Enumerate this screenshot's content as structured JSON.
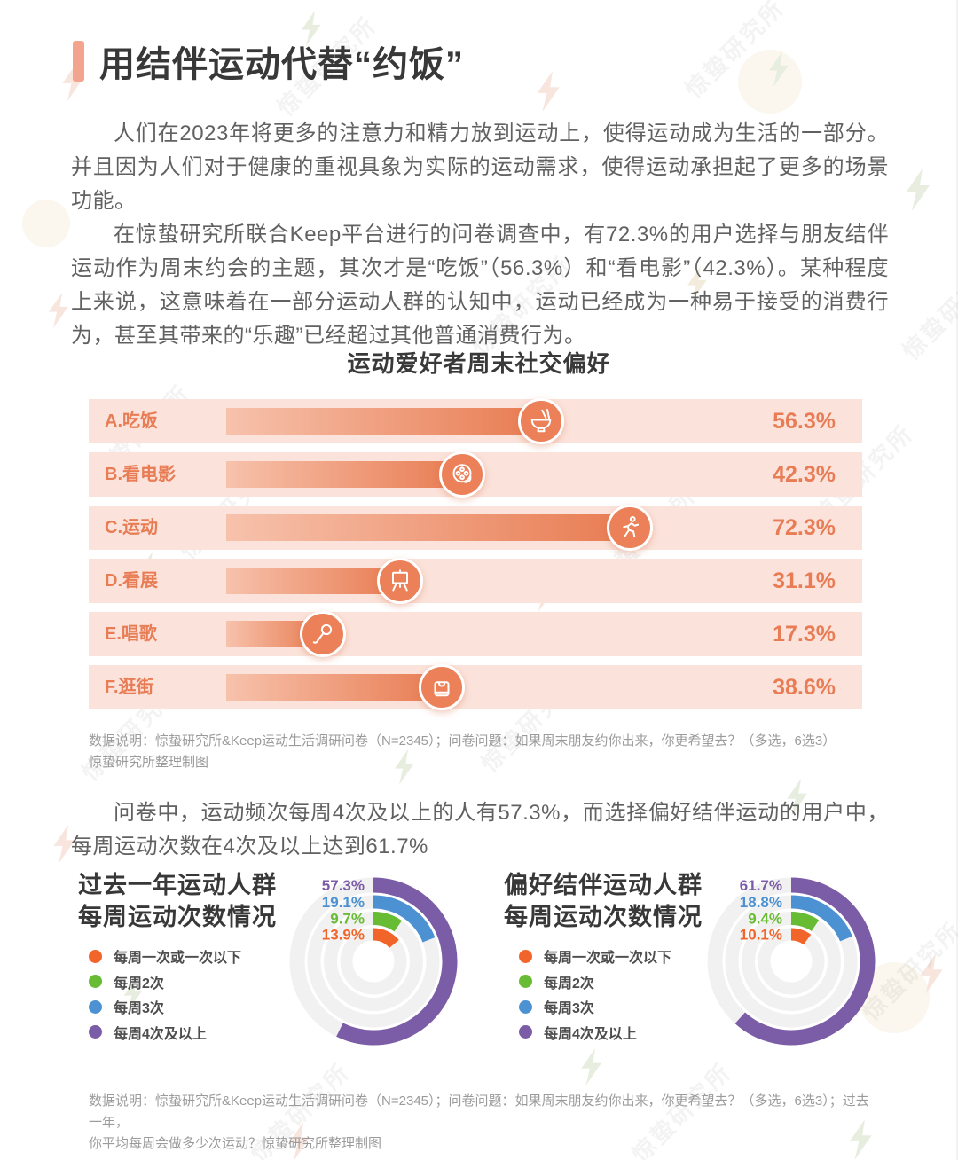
{
  "page": {
    "watermark_text": "惊蛰研究所"
  },
  "header": {
    "title": "用结伴运动代替“约饭”",
    "accent_color": "#F2A48E"
  },
  "paragraphs": {
    "p1": "人们在2023年将更多的注意力和精力放到运动上，使得运动成为生活的一部分。并且因为人们对于健康的重视具象为实际的运动需求，使得运动承担起了更多的场景功能。",
    "p2": "在惊蛰研究所联合Keep平台进行的问卷调查中，有72.3%的用户选择与朋友结伴运动作为周末约会的主题，其次才是“吃饭”（56.3%）和“看电影”（42.3%）。某种程度上来说，这意味着在一部分运动人群的认知中，运动已经成为一种易于接受的消费行为，甚至其带来的“乐趣”已经超过其他普通消费行为。",
    "p3": "问卷中，运动频次每周4次及以上的人有57.3%，而选择偏好结伴运动的用户中，每周运动次数在4次及以上达到61.7%"
  },
  "notes": {
    "note1": "数据说明：惊蛰研究所&Keep运动生活调研问卷（N=2345）；问卷问题：如果周末朋友约你出来，你更希望去？（多选，6选3）\n惊蛰研究所整理制图",
    "note2": "数据说明：惊蛰研究所&Keep运动生活调研问卷（N=2345）；问卷问题：如果周末朋友约你出来，你更希望去？（多选，6选3）；过去一年，\n你平均每周会做多少次运动？惊蛰研究所整理制图"
  },
  "legend": {
    "items": [
      {
        "label": "每周一次或一次以下",
        "color": "#F2652A"
      },
      {
        "label": "每周2次",
        "color": "#68BC34"
      },
      {
        "label": "每周3次",
        "color": "#4C92D2"
      },
      {
        "label": "每周4次及以上",
        "color": "#7B5CA6"
      }
    ]
  },
  "chart_data": [
    {
      "id": "weekend-social-preference",
      "type": "bar",
      "orientation": "horizontal",
      "title": "运动爱好者周末社交偏好",
      "categories": [
        "A.吃饭",
        "B.看电影",
        "C.运动",
        "D.看展",
        "E.唱歌",
        "F.逛街"
      ],
      "values": [
        56.3,
        42.3,
        72.3,
        31.1,
        17.3,
        38.6
      ],
      "value_suffix": "%",
      "xlim": [
        0,
        100
      ],
      "icons": [
        "rice-bowl",
        "film-reel",
        "runner",
        "easel-board",
        "microphone",
        "shopping-bag"
      ],
      "colors": {
        "row_background": "#FBE3DB",
        "bar_gradient_start": "#F7C2AC",
        "bar_gradient_end": "#E87C52",
        "label_and_value_text": "#E87C55"
      }
    },
    {
      "id": "weekly-frequency-all-sporters",
      "type": "pie",
      "variant": "concentric-donut",
      "title": "过去一年运动人群\n每周运动次数情况",
      "rings_outer_to_inner": [
        {
          "label": "每周4次及以上",
          "value": 57.3,
          "color": "#7B5CA6"
        },
        {
          "label": "每周3次",
          "value": 19.1,
          "color": "#4C92D2"
        },
        {
          "label": "每周2次",
          "value": 9.7,
          "color": "#68BC34"
        },
        {
          "label": "每周一次或一次以下",
          "value": 13.9,
          "color": "#F2652A"
        }
      ],
      "value_suffix": "%"
    },
    {
      "id": "weekly-frequency-buddy-sport-preferrers",
      "type": "pie",
      "variant": "concentric-donut",
      "title": "偏好结伴运动人群\n每周运动次数情况",
      "rings_outer_to_inner": [
        {
          "label": "每周4次及以上",
          "value": 61.7,
          "color": "#7B5CA6"
        },
        {
          "label": "每周3次",
          "value": 18.8,
          "color": "#4C92D2"
        },
        {
          "label": "每周2次",
          "value": 9.4,
          "color": "#68BC34"
        },
        {
          "label": "每周一次或一次以下",
          "value": 10.1,
          "color": "#F2652A"
        }
      ],
      "value_suffix": "%"
    }
  ]
}
